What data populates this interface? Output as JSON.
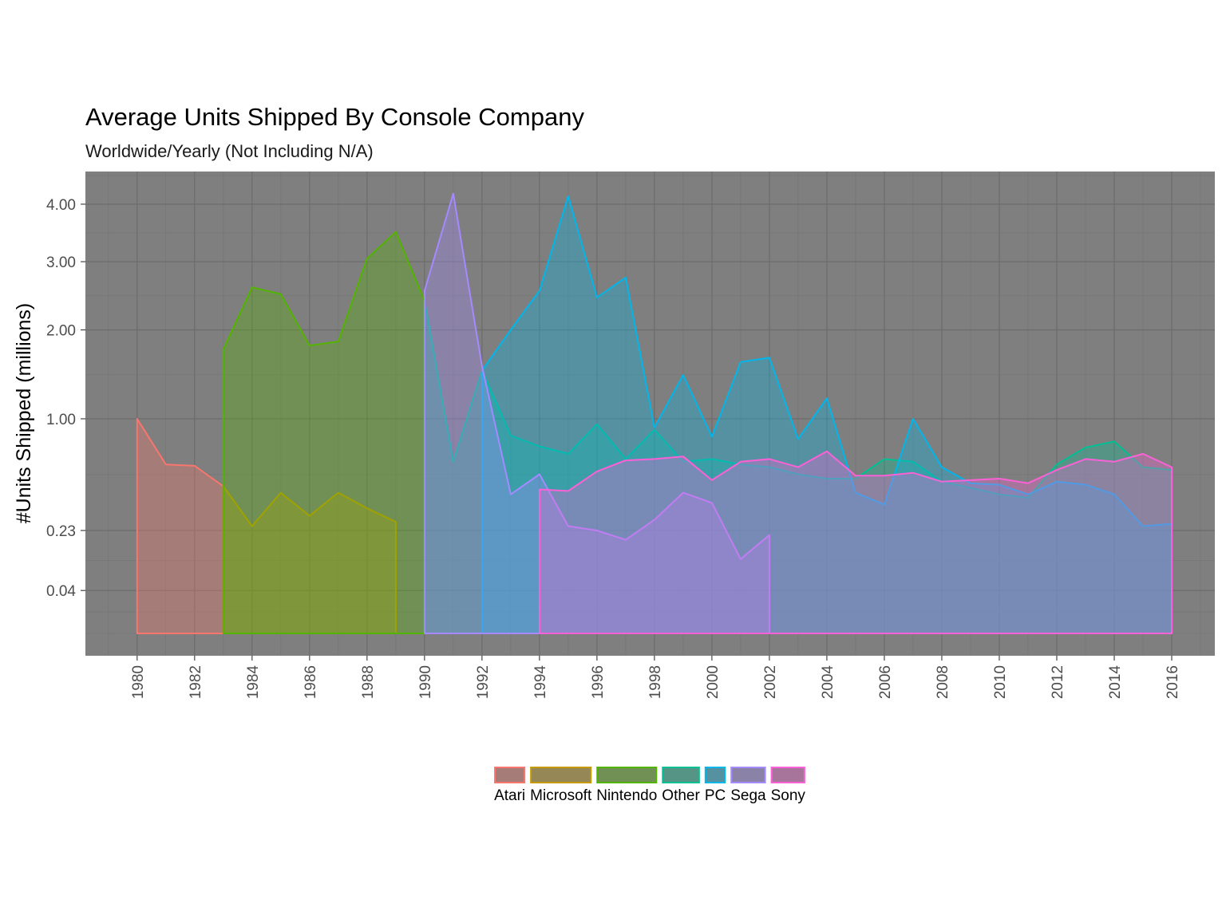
{
  "chart_data": {
    "type": "area",
    "title": "Average Units Shipped By Console Company",
    "subtitle": "Worldwide/Yearly (Not Including N/A)",
    "xlabel": "",
    "ylabel": "#Units Shipped (millions)",
    "y_scale": "sqrt",
    "ylim": [
      0,
      4.6
    ],
    "xlim": [
      1978.2,
      2017.5
    ],
    "y_ticks": [
      0.04,
      0.23,
      1.0,
      2.0,
      3.0,
      4.0
    ],
    "y_tick_labels": [
      "0.04",
      "0.23",
      "1.00",
      "2.00",
      "3.00",
      "4.00"
    ],
    "x_ticks": [
      1980,
      1982,
      1984,
      1986,
      1988,
      1990,
      1992,
      1994,
      1996,
      1998,
      2000,
      2002,
      2004,
      2006,
      2008,
      2010,
      2012,
      2014,
      2016
    ],
    "grid": true,
    "panel_background": "#7f7f7f",
    "legend_position": "bottom",
    "series": [
      {
        "name": "Atari",
        "color": "#F8766D",
        "x": [
          1980,
          1981,
          1982,
          1983
        ],
        "y": [
          1.0,
          0.62,
          0.61,
          0.47
        ]
      },
      {
        "name": "Microsoft",
        "color": "#C49A00",
        "x": [
          1983,
          1984,
          1985,
          1986,
          1987,
          1988,
          1989
        ],
        "y": [
          0.47,
          0.25,
          0.43,
          0.3,
          0.43,
          0.34,
          0.27
        ]
      },
      {
        "name": "Nintendo",
        "color": "#53B400",
        "x": [
          1983,
          1984,
          1985,
          1986,
          1987,
          1988,
          1989,
          1990
        ],
        "y": [
          1.75,
          2.6,
          2.5,
          1.8,
          1.85,
          3.05,
          3.5,
          2.4
        ]
      },
      {
        "name": "Other",
        "color": "#00C094",
        "x": [
          1990,
          1991,
          1992,
          1993,
          1994,
          1995,
          1996,
          1997,
          1998,
          1999,
          2000,
          2001,
          2002,
          2003,
          2004,
          2005,
          2006,
          2007,
          2008,
          2009,
          2010,
          2011,
          2012,
          2013,
          2014,
          2015,
          2016
        ],
        "y": [
          2.4,
          0.64,
          1.5,
          0.85,
          0.76,
          0.7,
          0.95,
          0.66,
          0.9,
          0.64,
          0.66,
          0.62,
          0.6,
          0.55,
          0.52,
          0.52,
          0.66,
          0.64,
          0.5,
          0.46,
          0.42,
          0.4,
          0.62,
          0.75,
          0.8,
          0.6,
          0.58
        ]
      },
      {
        "name": "PC",
        "color": "#00B6EB",
        "x": [
          1992,
          1993,
          1994,
          1995,
          1996,
          1997,
          1998,
          1999,
          2000,
          2001,
          2002,
          2003,
          2004,
          2005,
          2006,
          2007,
          2008,
          2009,
          2010,
          2011,
          2012,
          2013,
          2014,
          2015,
          2016
        ],
        "y": [
          1.5,
          2.0,
          2.55,
          4.15,
          2.45,
          2.75,
          0.92,
          1.45,
          0.84,
          1.6,
          1.65,
          0.82,
          1.2,
          0.43,
          0.36,
          1.0,
          0.6,
          0.49,
          0.48,
          0.42,
          0.5,
          0.48,
          0.42,
          0.25,
          0.26
        ]
      },
      {
        "name": "Sega",
        "color": "#A58AFF",
        "x": [
          1990,
          1991,
          1992,
          1993,
          1994,
          1995,
          1996,
          1997,
          1998,
          1999,
          2000,
          2001,
          2002
        ],
        "y": [
          2.55,
          4.2,
          1.55,
          0.42,
          0.55,
          0.25,
          0.23,
          0.19,
          0.28,
          0.43,
          0.37,
          0.12,
          0.21
        ]
      },
      {
        "name": "Sony",
        "color": "#FB61D7",
        "x": [
          1994,
          1995,
          1996,
          1997,
          1998,
          1999,
          2000,
          2001,
          2002,
          2003,
          2004,
          2005,
          2006,
          2007,
          2008,
          2009,
          2010,
          2011,
          2012,
          2013,
          2014,
          2015,
          2016
        ],
        "y": [
          0.45,
          0.44,
          0.57,
          0.65,
          0.66,
          0.68,
          0.51,
          0.64,
          0.66,
          0.6,
          0.72,
          0.54,
          0.54,
          0.56,
          0.5,
          0.51,
          0.52,
          0.49,
          0.58,
          0.66,
          0.64,
          0.7,
          0.6
        ]
      }
    ]
  }
}
